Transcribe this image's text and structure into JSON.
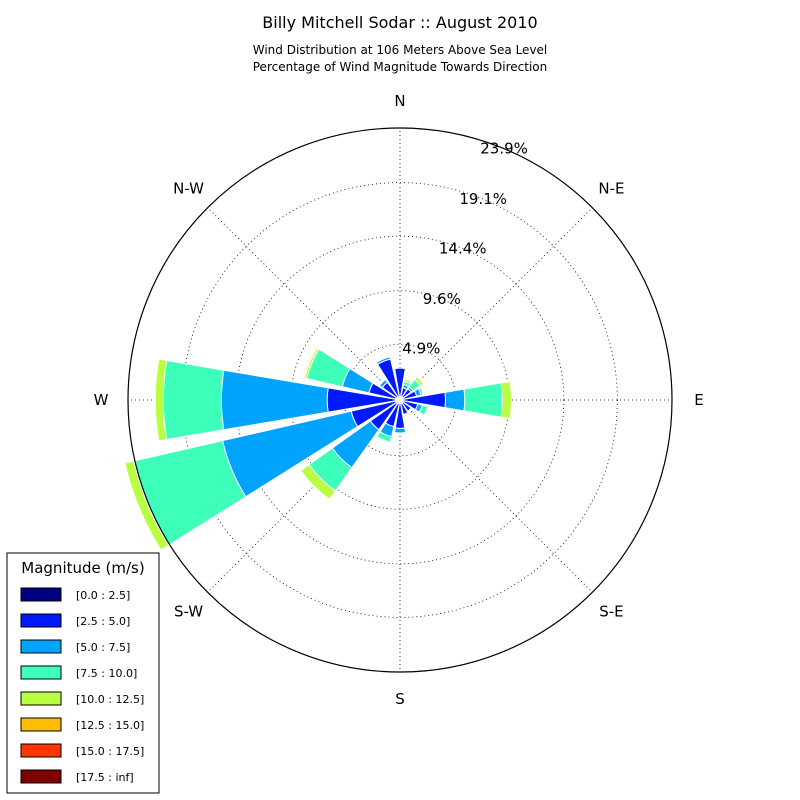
{
  "chart_data": {
    "type": "windrose",
    "title": "Billy Mitchell Sodar :: August 2010",
    "subtitle_lines": [
      "Wind Distribution at 106 Meters Above Sea Level",
      "Percentage of Wind Magnitude Towards Direction"
    ],
    "directions": [
      "N",
      "N-E",
      "E",
      "S-E",
      "S",
      "S-W",
      "W",
      "N-W"
    ],
    "radial_ticks": [
      "4.9%",
      "9.6%",
      "14.4%",
      "19.1%",
      "23.9%"
    ],
    "radial_tick_values": [
      4.9,
      9.6,
      14.4,
      19.1,
      23.9
    ],
    "rmax": 23.9,
    "grid": true,
    "legend": {
      "title": "Magnitude (m/s)",
      "placement": "lower-left",
      "bins": [
        "[0.0 : 2.5]",
        "[2.5 : 5.0]",
        "[5.0 : 7.5]",
        "[7.5 : 10.0]",
        "[10.0 : 12.5]",
        "[12.5 : 15.0]",
        "[15.0 : 17.5]",
        "[17.5 : inf]"
      ],
      "colors": [
        "#000080",
        "#0019ff",
        "#00a4ff",
        "#3dffba",
        "#b7ff40",
        "#ffbd00",
        "#ff3500",
        "#800000"
      ]
    },
    "sector_angles_deg": [
      0,
      22.5,
      45,
      67.5,
      90,
      112.5,
      135,
      157.5,
      180,
      202.5,
      225,
      247.5,
      270,
      292.5,
      315,
      337.5
    ],
    "series": [
      {
        "name": "[0.0 : 2.5]",
        "values": [
          0.3,
          0.3,
          0.3,
          0.3,
          0.3,
          0.3,
          0.3,
          0.3,
          0.3,
          0.3,
          0.4,
          0.4,
          0.4,
          0.4,
          0.3,
          0.3
        ]
      },
      {
        "name": "[2.5 : 5.0]",
        "values": [
          2.5,
          0.8,
          0.9,
          1.2,
          3.7,
          1.3,
          0.9,
          1.0,
          2.2,
          2.1,
          2.8,
          4.0,
          6.0,
          2.4,
          1.6,
          3.4
        ]
      },
      {
        "name": "[5.0 : 7.5]",
        "values": [
          0.0,
          0.3,
          0.2,
          0.4,
          1.7,
          0.4,
          0.0,
          0.0,
          0.4,
          0.9,
          4.1,
          11.6,
          9.3,
          2.4,
          0.3,
          0.2
        ]
      },
      {
        "name": "[7.5 : 10.0]",
        "values": [
          0.0,
          0.3,
          0.8,
          0.2,
          3.3,
          0.5,
          0.0,
          0.0,
          0.0,
          0.5,
          2.5,
          8.0,
          5.1,
          3.2,
          0.0,
          0.0
        ]
      },
      {
        "name": "[10.0 : 12.5]",
        "values": [
          0.0,
          0.2,
          0.3,
          0.0,
          0.8,
          0.0,
          0.0,
          0.0,
          0.0,
          0.0,
          0.9,
          0.8,
          0.7,
          0.2,
          0.0,
          0.0
        ]
      },
      {
        "name": "[12.5 : 15.0]",
        "values": [
          0.0,
          0.0,
          0.0,
          0.0,
          0.0,
          0.0,
          0.0,
          0.0,
          0.0,
          0.0,
          0.0,
          0.0,
          0.0,
          0.1,
          0.0,
          0.0
        ]
      },
      {
        "name": "[15.0 : 17.5]",
        "values": [
          0,
          0,
          0,
          0,
          0,
          0,
          0,
          0,
          0,
          0,
          0,
          0,
          0,
          0,
          0,
          0
        ]
      },
      {
        "name": "[17.5 : inf]",
        "values": [
          0,
          0,
          0,
          0,
          0,
          0,
          0,
          0,
          0,
          0,
          0,
          0,
          0,
          0,
          0,
          0
        ]
      }
    ]
  }
}
